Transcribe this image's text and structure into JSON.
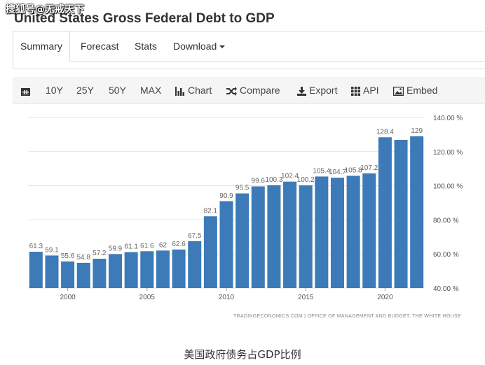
{
  "watermark": "搜狐号@无戒天下",
  "page_title": "United States Gross Federal Debt to GDP",
  "tabs": [
    {
      "label": "Summary",
      "active": true
    },
    {
      "label": "Forecast",
      "active": false
    },
    {
      "label": "Stats",
      "active": false
    },
    {
      "label": "Download",
      "active": false
    }
  ],
  "toolbar": {
    "calendar_icon": "calendar-icon",
    "ranges": [
      "10Y",
      "25Y",
      "50Y",
      "MAX"
    ],
    "chart_label": "Chart",
    "compare_label": "Compare",
    "export_label": "Export",
    "api_label": "API",
    "embed_label": "Embed"
  },
  "colors": {
    "bar": "#3d7ab8",
    "grid": "#e3e3e3",
    "toolbar_bg": "#f5f5f5"
  },
  "chart_data": {
    "type": "bar",
    "years": [
      1998,
      1999,
      2000,
      2001,
      2002,
      2003,
      2004,
      2005,
      2006,
      2007,
      2008,
      2009,
      2010,
      2011,
      2012,
      2013,
      2014,
      2015,
      2016,
      2017,
      2018,
      2019,
      2020,
      2021,
      2022
    ],
    "values": [
      61.3,
      59.1,
      55.6,
      54.8,
      57.2,
      59.9,
      61.1,
      61.6,
      62,
      62.6,
      67.5,
      82.1,
      90.9,
      95.5,
      99.6,
      100.3,
      102.4,
      100.2,
      105.4,
      104.7,
      105.8,
      107.2,
      128.4,
      126.9,
      129
    ],
    "data_labels": [
      "61.3",
      "59.1",
      "55.6",
      "54.8",
      "57.2",
      "59.9",
      "61.1",
      "61.6",
      "62",
      "62.6",
      "67.5",
      "82.1",
      "90.9",
      "95.5",
      "99.6",
      "100.3",
      "102.4",
      "100.2",
      "105.4",
      "104.7",
      "105.8",
      "107.2",
      "128.4",
      "",
      "129"
    ],
    "x_ticks": [
      "2000",
      "2005",
      "2010",
      "2015",
      "2020"
    ],
    "y_ticks": [
      "40.00 %",
      "60.00 %",
      "80.00 %",
      "100.00 %",
      "120.00 %",
      "140.00 %"
    ],
    "ylim": [
      40,
      140
    ],
    "y_axis_side": "right",
    "grid": true,
    "source": "TRADINGECONOMICS.COM  |  OFFICE OF MANAGEMENT AND BUDGET, THE WHITE HOUSE"
  },
  "caption": "美国政府债务占GDP比例"
}
